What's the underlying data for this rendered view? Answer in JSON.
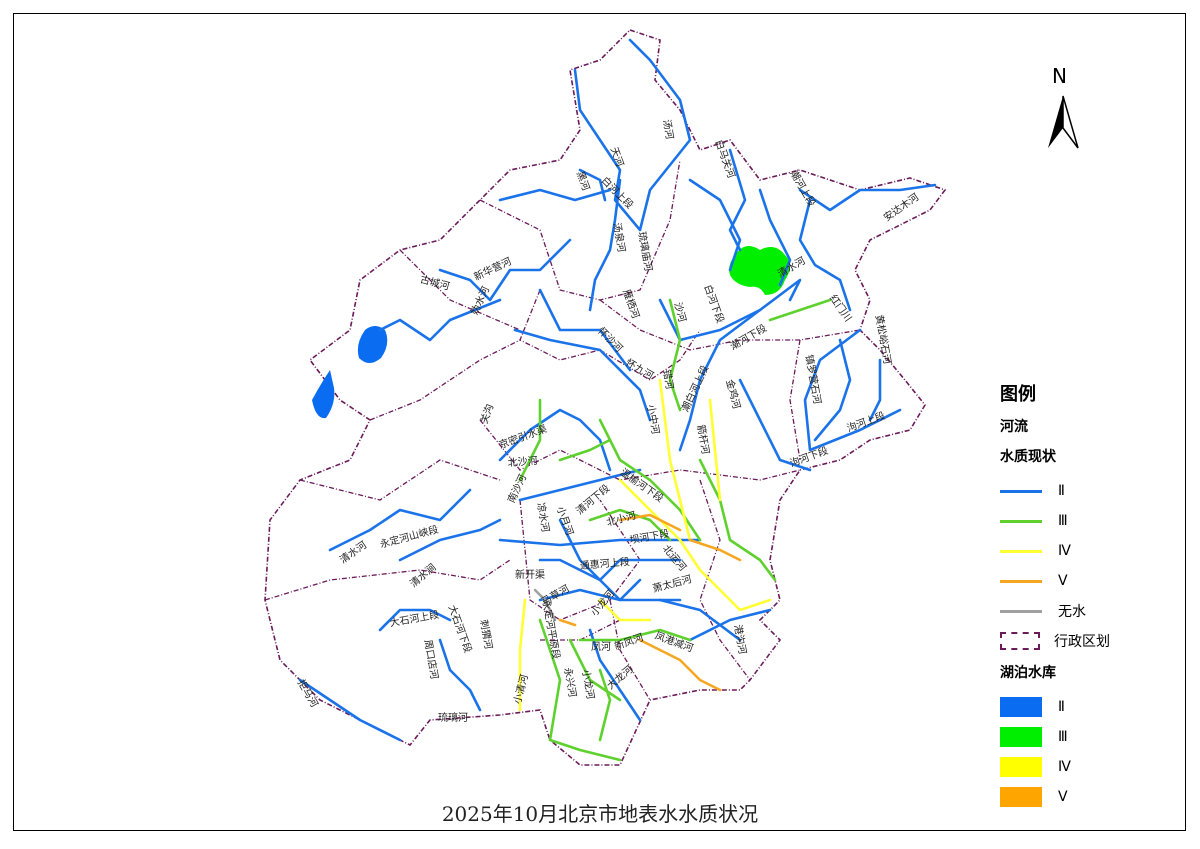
{
  "title": "2025年10月北京市地表水水质状况",
  "north_label": "N",
  "colors": {
    "class_II": "#1a73e8",
    "class_III": "#5fd12e",
    "class_IV": "#ffff33",
    "class_V": "#f5a623",
    "no_water": "#a0a0a0",
    "boundary": "#6b1a5a",
    "lake_II": "#0a6cf0",
    "lake_III": "#00ee00",
    "lake_IV": "#ffff00",
    "lake_V": "#ffa500"
  },
  "legend": {
    "title": "图例",
    "rivers_heading": "河流",
    "quality_heading": "水质现状",
    "river_items": [
      {
        "label": "Ⅱ",
        "color": "#1a73e8"
      },
      {
        "label": "Ⅲ",
        "color": "#5fd12e"
      },
      {
        "label": "Ⅳ",
        "color": "#ffff33"
      },
      {
        "label": "Ⅴ",
        "color": "#f5a623"
      },
      {
        "label": "无水",
        "color": "#a0a0a0"
      }
    ],
    "boundary_label": "行政区划",
    "lakes_heading": "湖泊水库",
    "lake_items": [
      {
        "label": "Ⅱ",
        "color": "#0a6cf0"
      },
      {
        "label": "Ⅲ",
        "color": "#00ee00"
      },
      {
        "label": "Ⅳ",
        "color": "#ffff00"
      },
      {
        "label": "Ⅴ",
        "color": "#ffa500"
      }
    ]
  },
  "river_labels": [
    "汤河",
    "天河",
    "黑河",
    "白河上段",
    "汤泉河",
    "琉璃庙河",
    "白马关河",
    "潮河上段",
    "安达木河",
    "古城河",
    "新华营河",
    "妫水河",
    "雁栖河",
    "沙河",
    "白河下段",
    "清水河",
    "红门川",
    "怀沙河",
    "怀九河",
    "潮河下段",
    "潮白河上段",
    "错河",
    "金鸡河",
    "黄松峪石河",
    "镇罗营石河",
    "泃河上段",
    "泃河下段",
    "关沟",
    "京密引水渠",
    "北沙河",
    "南沙河",
    "小中河",
    "箭杆河",
    "温榆河下段",
    "清河下段",
    "小月河",
    "北小河",
    "坝河下段",
    "凉水河",
    "通惠河上段",
    "北运河",
    "新开渠",
    "马草河",
    "萧太后河",
    "小龙河",
    "港沟河",
    "凤河",
    "新凤河",
    "凤港减河",
    "清水河",
    "永定河山峡段",
    "清水涧",
    "大石河上段",
    "大石河下段",
    "周口店河",
    "刺猬河",
    "小清河",
    "永定河平原段",
    "永兴河",
    "小龙河",
    "大龙河",
    "琉璃河",
    "拒马河"
  ]
}
